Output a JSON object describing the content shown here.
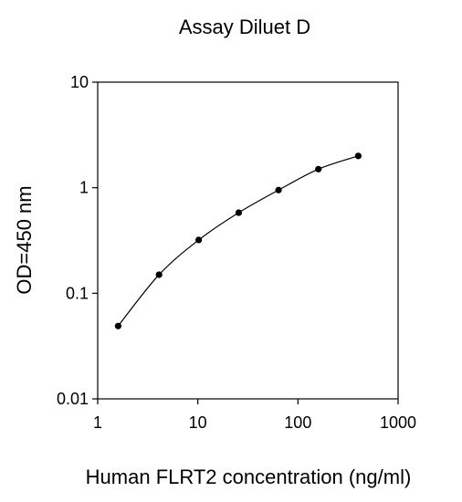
{
  "chart_data": {
    "type": "scatter",
    "title": "Assay Diluet D",
    "xlabel": "Human FLRT2 concentration (ng/ml)",
    "ylabel": "OD=450 nm",
    "xscale": "log",
    "yscale": "log",
    "xlim": [
      1,
      1000
    ],
    "ylim": [
      0.01,
      10
    ],
    "x_ticks": [
      1,
      10,
      100,
      1000
    ],
    "x_tick_labels": [
      "1",
      "10",
      "100",
      "1000"
    ],
    "y_ticks": [
      0.01,
      0.1,
      1,
      10
    ],
    "y_tick_labels": [
      "0.01",
      "0.1",
      "1",
      "10"
    ],
    "grid": false,
    "legend": "none",
    "series": [
      {
        "x": [
          1.6,
          4.1,
          10.2,
          25.6,
          64,
          160,
          400
        ],
        "y": [
          0.049,
          0.15,
          0.32,
          0.58,
          0.95,
          1.5,
          2.0
        ],
        "line": true,
        "marker": "circle",
        "color": "#000000"
      }
    ]
  }
}
